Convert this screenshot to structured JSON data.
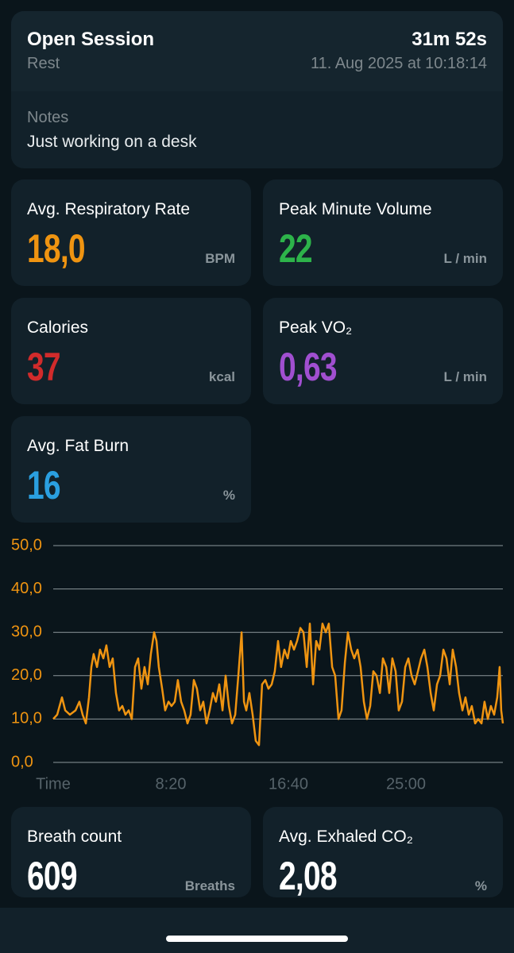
{
  "session": {
    "title": "Open Session",
    "duration": "31m 52s",
    "activity": "Rest",
    "date": "11. Aug 2025 at 10:18:14",
    "notes_label": "Notes",
    "notes": "Just working on a desk"
  },
  "metrics": [
    {
      "label": "Avg. Respiratory Rate",
      "value": "18,0",
      "unit": "BPM",
      "color": "#ef9411"
    },
    {
      "label": "Peak Minute Volume",
      "value": "22",
      "unit": "L / min",
      "color": "#2db34a"
    },
    {
      "label": "Calories",
      "value": "37",
      "unit": "kcal",
      "color": "#d12b2b"
    },
    {
      "label": "Peak VO₂",
      "value": "0,63",
      "unit": "L / min",
      "color": "#a04fd0"
    },
    {
      "label": "Avg. Fat Burn",
      "value": "16",
      "unit": "%",
      "color": "#2a9fe0"
    },
    {
      "label": "Breath count",
      "value": "609",
      "unit": "Breaths",
      "color": "#ffffff"
    },
    {
      "label": "Avg. Exhaled CO₂",
      "value": "2,08",
      "unit": "%",
      "color": "#ffffff"
    }
  ],
  "chart_data": {
    "type": "line",
    "x_label": "Time",
    "x": [
      0,
      17,
      37,
      51,
      71,
      95,
      111,
      125,
      139,
      152,
      162,
      172,
      186,
      199,
      213,
      226,
      240,
      253,
      267,
      280,
      294,
      307,
      321,
      334,
      348,
      361,
      375,
      388,
      402,
      415,
      429,
      439,
      449,
      463,
      476,
      490,
      503,
      517,
      530,
      544,
      557,
      571,
      584,
      598,
      611,
      625,
      638,
      652,
      665,
      679,
      692,
      706,
      720,
      733,
      747,
      760,
      774,
      787,
      801,
      811,
      821,
      834,
      848,
      861,
      875,
      888,
      902,
      915,
      929,
      942,
      956,
      969,
      983,
      997,
      1010,
      1024,
      1037,
      1051,
      1064,
      1078,
      1091,
      1105,
      1118,
      1132,
      1145,
      1159,
      1172,
      1186,
      1199,
      1213,
      1226,
      1240,
      1253,
      1267,
      1280,
      1294,
      1307,
      1321,
      1334,
      1348,
      1361,
      1375,
      1389,
      1402,
      1416,
      1429,
      1442,
      1456,
      1469,
      1483,
      1497,
      1510,
      1524,
      1537,
      1551,
      1564,
      1578,
      1591,
      1605,
      1618,
      1632,
      1645,
      1659,
      1672,
      1686,
      1699,
      1713,
      1726,
      1740,
      1753,
      1767,
      1780,
      1794,
      1807,
      1821,
      1834,
      1848,
      1861,
      1875,
      1888,
      1898,
      1905,
      1912
    ],
    "series": [
      {
        "color": "#ef9411",
        "values": [
          10,
          11,
          15,
          12,
          11,
          12,
          14,
          11,
          9,
          15,
          22,
          25,
          22,
          26,
          24,
          27,
          22,
          24,
          16,
          12,
          13,
          11,
          12,
          10,
          22,
          24,
          17,
          22,
          18,
          25,
          30,
          28,
          22,
          17,
          12,
          14,
          13,
          14,
          19,
          14,
          12,
          9,
          11,
          19,
          17,
          12,
          14,
          9,
          12,
          16,
          14,
          18,
          12,
          20,
          13,
          9,
          11,
          20,
          30,
          14,
          12,
          16,
          11,
          5,
          4,
          18,
          19,
          17,
          18,
          21,
          28,
          22,
          26,
          24,
          28,
          26,
          28,
          31,
          30,
          22,
          32,
          18,
          28,
          26,
          32,
          30,
          32,
          22,
          20,
          10,
          12,
          23,
          30,
          26,
          24,
          26,
          22,
          14,
          10,
          13,
          21,
          20,
          16,
          24,
          22,
          16,
          24,
          21,
          12,
          14,
          22,
          24,
          20,
          18,
          21,
          24,
          26,
          22,
          16,
          12,
          18,
          20,
          26,
          24,
          18,
          26,
          22,
          16,
          12,
          15,
          11,
          13,
          9,
          10,
          9,
          14,
          10,
          13,
          11,
          15,
          22,
          12,
          9
        ]
      }
    ],
    "xlim": [
      0,
      1912
    ],
    "xticks": [
      {
        "value": 500,
        "label": "8:20"
      },
      {
        "value": 1000,
        "label": "16:40"
      },
      {
        "value": 1500,
        "label": "25:00"
      }
    ],
    "ylim": [
      0,
      50
    ],
    "yticks": [
      {
        "value": 0,
        "label": "0,0"
      },
      {
        "value": 10,
        "label": "10,0"
      },
      {
        "value": 20,
        "label": "20,0"
      },
      {
        "value": 30,
        "label": "30,0"
      },
      {
        "value": 40,
        "label": "40,0"
      },
      {
        "value": 50,
        "label": "50,0"
      }
    ],
    "grid": true
  }
}
